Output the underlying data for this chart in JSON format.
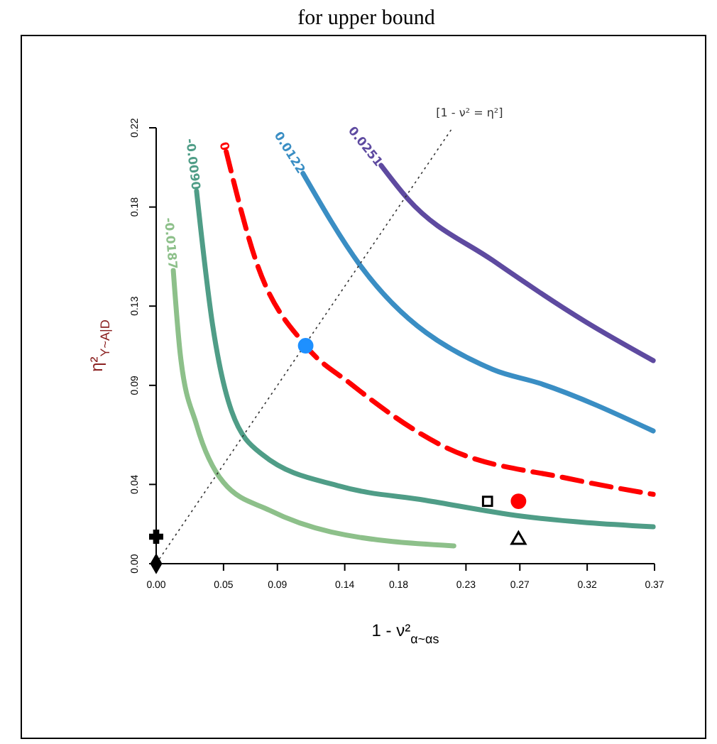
{
  "chart_data": {
    "type": "line",
    "title": "for upper bound",
    "xlabel": "1 - ν²$_{α~αs}$",
    "ylabel": "η²$_{Y~A|D}$",
    "xlim": [
      0,
      0.37
    ],
    "ylim": [
      0,
      0.22
    ],
    "xticks": [
      {
        "value": 0,
        "label": "0.00"
      },
      0.05,
      0.09,
      0.14,
      0.18,
      0.23,
      0.27,
      0.32,
      0.37
    ],
    "yticks": [
      {
        "value": 0,
        "label": "0.00"
      },
      0.04,
      0.09,
      0.13,
      0.18,
      0.22
    ],
    "grid": false,
    "series": [
      {
        "name": "-0.0187",
        "color": "#8dc08a",
        "line_style": "solid",
        "marker": "none",
        "x": [
          0.0127,
          0.018,
          0.03,
          0.05,
          0.084,
          0.13,
          0.221
        ],
        "values": [
          0.148,
          0.105,
          0.07,
          0.041,
          0.027,
          0.016,
          0.009
        ]
      },
      {
        "name": "-0.0090",
        "color": "#4f9d87",
        "line_style": "solid",
        "marker": "none",
        "x": [
          0.03,
          0.042,
          0.056,
          0.079,
          0.137,
          0.2,
          0.271,
          0.369
        ],
        "values": [
          0.188,
          0.12,
          0.077,
          0.055,
          0.039,
          0.032,
          0.024,
          0.0186
        ]
      },
      {
        "name": "0",
        "color": "#ff0000",
        "line_style": "dashed",
        "marker": "none",
        "x": [
          0.052,
          0.074,
          0.111,
          0.144,
          0.214,
          0.306,
          0.369
        ],
        "values": [
          0.208,
          0.153,
          0.11,
          0.091,
          0.059,
          0.043,
          0.035
        ]
      },
      {
        "name": "0.0122",
        "color": "#3a8ec4",
        "line_style": "solid",
        "marker": "none",
        "x": [
          0.109,
          0.151,
          0.25,
          0.285,
          0.369
        ],
        "values": [
          0.197,
          0.151,
          0.098,
          0.091,
          0.067
        ]
      },
      {
        "name": "0.0251",
        "color": "#5e4aa0",
        "line_style": "solid",
        "marker": "none",
        "x": [
          0.167,
          0.187,
          0.25,
          0.319,
          0.369
        ],
        "values": [
          0.201,
          0.184,
          0.153,
          0.122,
          0.1025
        ]
      },
      {
        "name": "[1 - ν² = η²]",
        "color": "#333333",
        "line_style": "dotted",
        "marker": "none",
        "x": [
          0,
          0.22
        ],
        "values": [
          0,
          0.22
        ]
      },
      {
        "type": "scatter",
        "color": "#1e90ff",
        "marker": "circle",
        "x": [
          0.111
        ],
        "values": [
          0.11
        ]
      },
      {
        "type": "scatter",
        "color": "#ff0000",
        "marker": "circle",
        "x": [
          0.269
        ],
        "values": [
          0.0315
        ]
      },
      {
        "type": "scatter",
        "color": "#000000",
        "marker": "square",
        "x": [
          0.246
        ],
        "values": [
          0.0315
        ]
      },
      {
        "type": "scatter",
        "color": "#000000",
        "marker": "triangle",
        "x": [
          0.269
        ],
        "values": [
          0.012
        ]
      },
      {
        "type": "scatter",
        "color": "#000000",
        "marker": "cross",
        "x": [
          0
        ],
        "values": [
          0.0136
        ]
      },
      {
        "type": "scatter",
        "color": "#000000",
        "marker": "diamond",
        "x": [
          0
        ],
        "values": [
          0
        ]
      }
    ]
  }
}
